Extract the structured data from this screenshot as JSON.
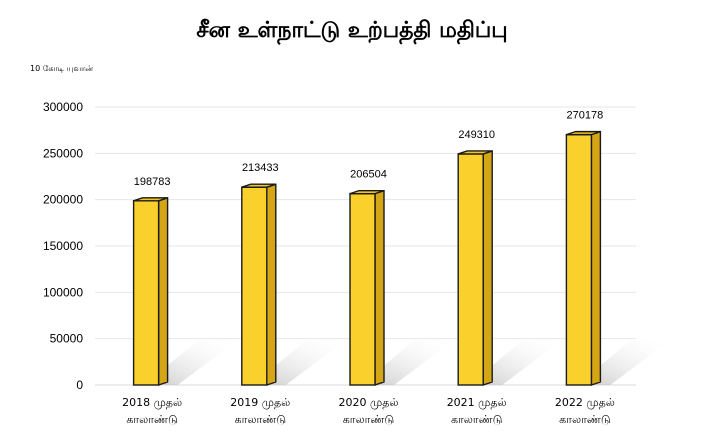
{
  "chart_data": {
    "type": "bar",
    "title": "சீன உள்நாட்டு உற்பத்தி மதிப்பு",
    "unit_label": "10 கோடி யுவான்",
    "categories": [
      [
        "2018 முதல்",
        "காலாண்டு"
      ],
      [
        "2019 முதல்",
        "காலாண்டு"
      ],
      [
        "2020 முதல்",
        "காலாண்டு"
      ],
      [
        "2021 முதல்",
        "காலாண்டு"
      ],
      [
        "2022 முதல்",
        "காலாண்டு"
      ]
    ],
    "values": [
      198783,
      213433,
      206504,
      249310,
      270178
    ],
    "data_labels": [
      "198783",
      "213433",
      "206504",
      "249310",
      "270178"
    ],
    "ylim": [
      0,
      300000
    ],
    "yticks": [
      "0",
      "50000",
      "100000",
      "150000",
      "200000",
      "250000",
      "300000"
    ],
    "grid": true,
    "colors": {
      "bar_front": "#FAD02C",
      "bar_side": "#D4A514",
      "bar_top": "#F2C41E",
      "outline": "#1a1a1a",
      "grid": "#e6e6e6"
    }
  }
}
